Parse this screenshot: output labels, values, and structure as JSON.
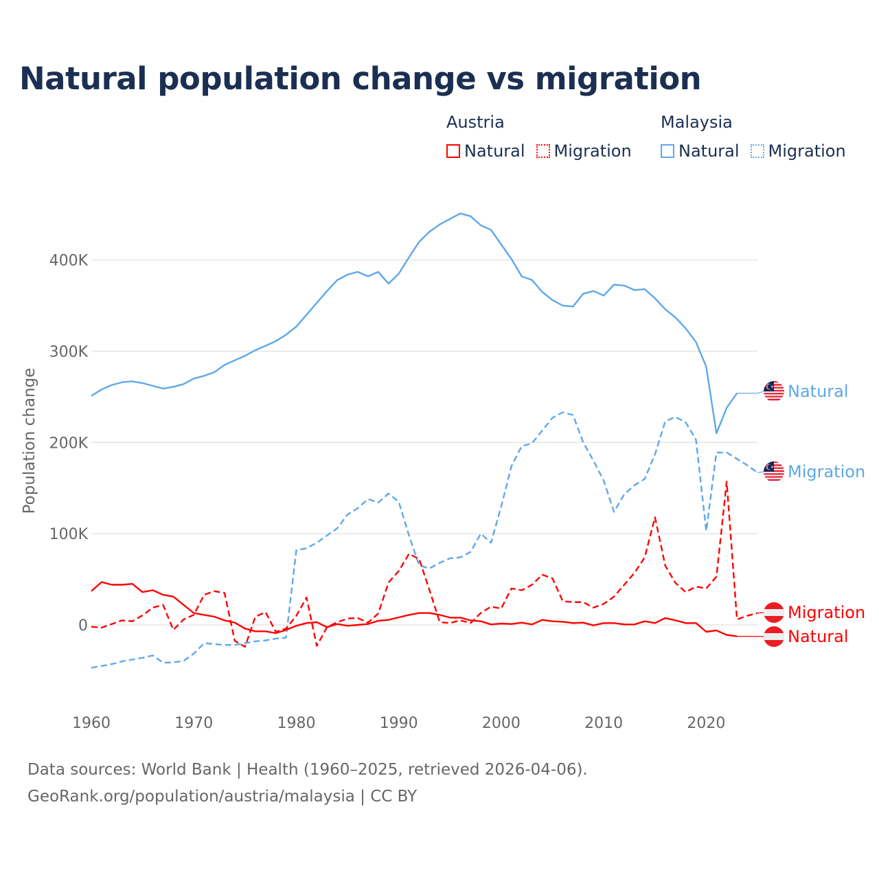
{
  "chart_data": {
    "type": "line",
    "title": "Natural population change vs migration",
    "xlabel": "",
    "ylabel": "Population change",
    "xlim": [
      1960,
      2025
    ],
    "ylim": [
      -80000,
      460000
    ],
    "x_ticks": [
      1960,
      1970,
      1980,
      1990,
      2000,
      2010,
      2020
    ],
    "y_ticks": [
      0,
      100000,
      200000,
      300000,
      400000
    ],
    "y_tick_labels": [
      "0",
      "100K",
      "200K",
      "300K",
      "400K"
    ],
    "grid": true,
    "legend_position": "top-right",
    "legend": [
      {
        "group": "Austria",
        "items": [
          "Natural",
          "Migration"
        ]
      },
      {
        "group": "Malaysia",
        "items": [
          "Natural",
          "Migration"
        ]
      }
    ],
    "series": [
      {
        "name": "Malaysia Natural",
        "country": "Malaysia",
        "kind": "Natural",
        "color": "#5ea7ea",
        "dash": false,
        "start_year": 1960,
        "values_k": [
          251,
          258,
          263,
          266,
          267,
          265,
          262,
          259,
          261,
          264,
          270,
          273,
          277,
          285,
          290,
          295,
          301,
          306,
          311,
          318,
          327,
          340,
          353,
          366,
          378,
          384,
          387,
          382,
          387,
          374,
          385,
          403,
          420,
          431,
          439,
          445,
          451,
          448,
          438,
          433,
          417,
          401,
          382,
          378,
          365,
          356,
          350,
          349,
          363,
          366,
          361,
          373,
          372,
          367,
          368,
          358,
          346,
          337,
          325,
          310,
          283,
          210,
          238,
          254
        ]
      },
      {
        "name": "Malaysia Migration",
        "country": "Malaysia",
        "kind": "Migration",
        "color": "#5ea7ea",
        "dash": true,
        "start_year": 1960,
        "values_k": [
          -47,
          -45,
          -43,
          -40,
          -38,
          -36,
          -33.5,
          -41.5,
          -41,
          -39.5,
          -31.5,
          -20,
          -21,
          -22,
          -22,
          -20,
          -18,
          -17,
          -15,
          -14,
          82,
          84,
          90,
          98,
          106,
          121,
          128,
          138,
          134,
          144,
          135,
          98,
          65,
          62,
          68,
          73,
          74,
          80,
          100,
          90,
          130,
          174,
          196,
          199,
          213,
          227,
          233,
          230,
          200,
          180,
          158,
          124,
          143,
          153,
          160,
          187,
          223,
          228,
          222,
          203,
          103,
          189,
          189,
          182,
          175,
          167
        ]
      },
      {
        "name": "Austria Migration",
        "country": "Austria",
        "kind": "Migration",
        "color": "#ff0000",
        "dash": true,
        "start_year": 1960,
        "values_k": [
          -2,
          -3,
          1,
          5,
          4,
          10.5,
          19,
          22,
          -5.5,
          6,
          11,
          33,
          37,
          35,
          -17.5,
          -24,
          9,
          14,
          -7.5,
          -4,
          10,
          30,
          -23,
          -2.5,
          3,
          7,
          7.5,
          2.5,
          12.5,
          46.5,
          59,
          78,
          72,
          38,
          3,
          2,
          5,
          2,
          13,
          20,
          18,
          40,
          38,
          44,
          55,
          51,
          26,
          25,
          25,
          19,
          23,
          31,
          44,
          57,
          74,
          118,
          65,
          46,
          36,
          42,
          40,
          53,
          157,
          6,
          10,
          13
        ]
      },
      {
        "name": "Austria Natural",
        "country": "Austria",
        "kind": "Natural",
        "color": "#ff0000",
        "dash": false,
        "start_year": 1960,
        "values_k": [
          37,
          47,
          44,
          44,
          45,
          36,
          38,
          33,
          31,
          22,
          13,
          11,
          9,
          5,
          2.5,
          -4,
          -7,
          -7,
          -9,
          -5.5,
          -1,
          2,
          3,
          -2.5,
          1,
          -1,
          0,
          1,
          4.5,
          5.5,
          8.3,
          11,
          13,
          13,
          11,
          8,
          8,
          5,
          4,
          0.5,
          1.5,
          1,
          2.5,
          0.5,
          5.5,
          4,
          3.5,
          2,
          2.5,
          -0.5,
          2,
          2,
          0.5,
          0.5,
          4,
          2,
          7.5,
          5,
          2,
          2,
          -7.5,
          -6,
          -11,
          -12.5
        ]
      }
    ],
    "end_labels": [
      {
        "text": "Natural",
        "series": 0,
        "flag": "malaysia"
      },
      {
        "text": "Migration",
        "series": 1,
        "flag": "malaysia"
      },
      {
        "text": "Migration",
        "series": 2,
        "flag": "austria"
      },
      {
        "text": "Natural",
        "series": 3,
        "flag": "austria"
      }
    ]
  },
  "legend": {
    "austria": {
      "label": "Austria",
      "natural": "Natural",
      "migration": "Migration",
      "color": "#ff0000"
    },
    "malaysia": {
      "label": "Malaysia",
      "natural": "Natural",
      "migration": "Migration",
      "color": "#5ea7ea"
    }
  },
  "footer": {
    "line1": "Data sources: World Bank | Health (1960–2025, retrieved 2026-04-06).",
    "line2": "GeoRank.org/population/austria/malaysia | CC BY"
  }
}
